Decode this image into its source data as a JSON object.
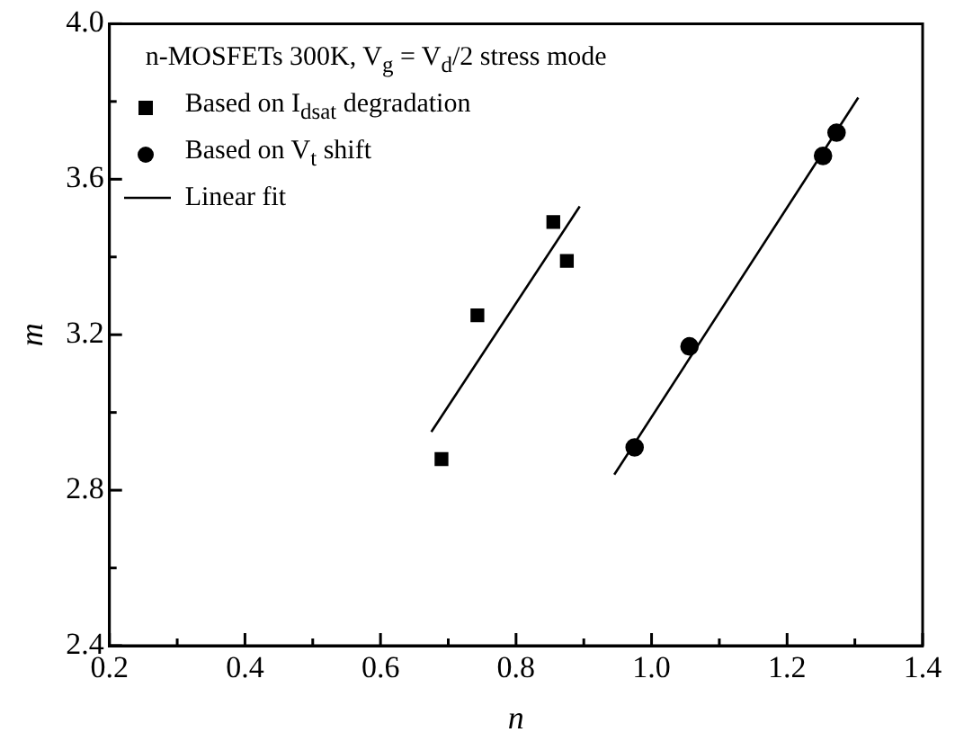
{
  "chart_data": {
    "type": "scatter",
    "xlabel": "n",
    "ylabel": "m",
    "legend_title": "n-MOSFETs 300K, V$_{g}$ = V$_{d}$/2 stress mode",
    "legend": "top left",
    "grid": false,
    "xlim": [
      0.2,
      1.4
    ],
    "xticks": [
      0.2,
      {
        "value": 0.3,
        "label": null
      },
      0.4,
      {
        "value": 0.5,
        "label": null
      },
      0.6,
      {
        "value": 0.7,
        "label": null
      },
      0.8,
      {
        "value": 0.9,
        "label": null
      },
      {
        "value": 1.0,
        "label": "1.0"
      },
      {
        "value": 1.1,
        "label": null
      },
      1.2,
      {
        "value": 1.3,
        "label": null
      },
      1.4
    ],
    "ylim": [
      2.4,
      4.0
    ],
    "yticks": [
      2.4,
      {
        "value": 2.6,
        "label": null
      },
      2.8,
      {
        "value": 3.0,
        "label": null
      },
      3.2,
      {
        "value": 3.4,
        "label": null
      },
      3.6,
      {
        "value": 3.8,
        "label": null
      },
      {
        "value": 4.0,
        "label": "4.0"
      }
    ],
    "series": [
      {
        "name": "Based on I$_{dsat}$ degradation",
        "marker": "square",
        "color": "#000000",
        "x": [
          0.69,
          0.743,
          0.855,
          0.875
        ],
        "values": [
          2.88,
          3.25,
          3.49,
          3.39
        ]
      },
      {
        "name": "Based on V$_{t}$ shift",
        "marker": "circle",
        "color": "#000000",
        "x": [
          0.975,
          1.056,
          1.253,
          1.273
        ],
        "values": [
          2.91,
          3.17,
          3.66,
          3.72
        ]
      },
      {
        "name": "Linear fit",
        "type": "line",
        "marker": "none",
        "line_style": "solid",
        "color": "#000000",
        "x": [
          0.675,
          0.894
        ],
        "values": [
          2.95,
          3.53
        ]
      },
      {
        "type": "line",
        "marker": "none",
        "line_style": "solid",
        "color": "#000000",
        "x": [
          0.945,
          1.305
        ],
        "values": [
          2.84,
          3.81
        ]
      }
    ]
  }
}
